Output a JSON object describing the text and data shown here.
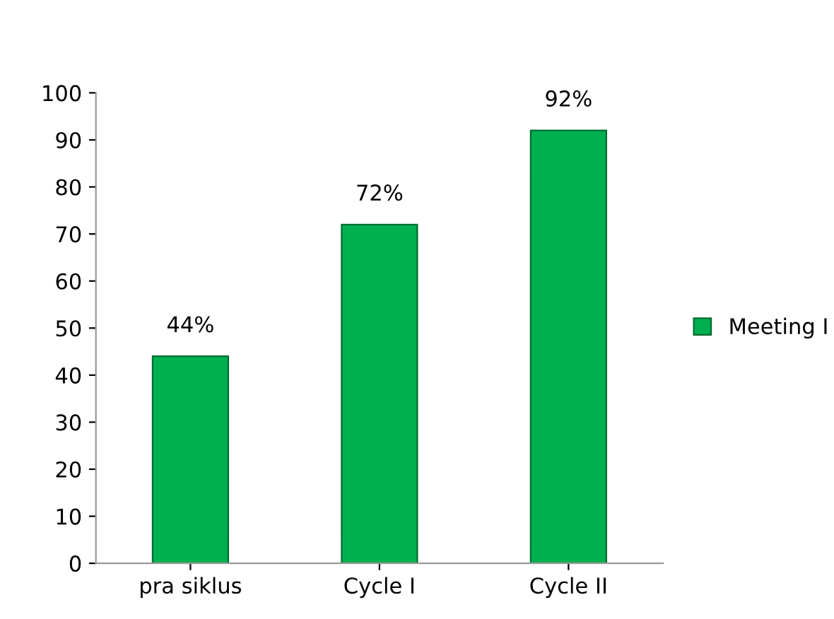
{
  "chart_data": {
    "type": "bar",
    "categories": [
      "pra siklus",
      "Cycle I",
      "Cycle II"
    ],
    "series": [
      {
        "name": "Meeting I",
        "color": "#00b050",
        "values": [
          44,
          72,
          92
        ],
        "value_labels": [
          "44%",
          "72%",
          "92%"
        ]
      }
    ],
    "ylim": [
      0,
      100
    ],
    "yticks": [
      0,
      10,
      20,
      30,
      40,
      50,
      60,
      70,
      80,
      90,
      100
    ],
    "grid": false,
    "legend": "right"
  }
}
